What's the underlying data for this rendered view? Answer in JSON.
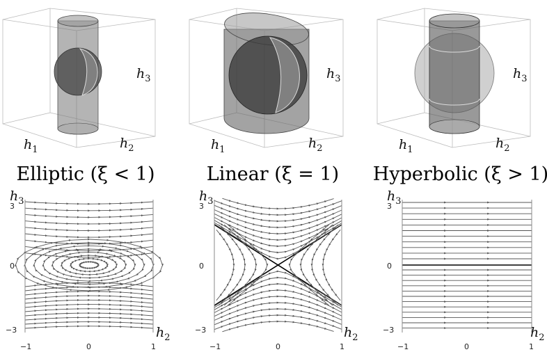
{
  "panels": [
    {
      "id": "elliptic",
      "title": "Elliptic (ξ < 1)",
      "axis_labels": {
        "h1": {
          "base": "h",
          "sub": "1"
        },
        "h2": {
          "base": "h",
          "sub": "2"
        },
        "h3": {
          "base": "h",
          "sub": "3"
        }
      },
      "phase_portrait": {
        "x_ticks": [
          "−1",
          "0",
          "1"
        ],
        "y_ticks": [
          "3",
          "0",
          "−3"
        ],
        "xlabel": {
          "base": "h",
          "sub": "2"
        },
        "ylabel": {
          "base": "h",
          "sub": "3"
        },
        "type": "elliptic"
      }
    },
    {
      "id": "linear",
      "title": "Linear (ξ = 1)",
      "axis_labels": {
        "h1": {
          "base": "h",
          "sub": "1"
        },
        "h2": {
          "base": "h",
          "sub": "2"
        },
        "h3": {
          "base": "h",
          "sub": "3"
        }
      },
      "phase_portrait": {
        "x_ticks": [
          "−1",
          "0",
          "1"
        ],
        "y_ticks": [
          "3",
          "0",
          "−3"
        ],
        "xlabel": {
          "base": "h",
          "sub": "2"
        },
        "ylabel": {
          "base": "h",
          "sub": "3"
        },
        "type": "saddle"
      }
    },
    {
      "id": "hyperbolic",
      "title": "Hyperbolic (ξ > 1)",
      "axis_labels": {
        "h1": {
          "base": "h",
          "sub": "1"
        },
        "h2": {
          "base": "h",
          "sub": "2"
        },
        "h3": {
          "base": "h",
          "sub": "3"
        }
      },
      "phase_portrait": {
        "x_ticks": [
          "−1",
          "0",
          "1"
        ],
        "y_ticks": [
          "3",
          "0",
          "−3"
        ],
        "xlabel": {
          "base": "h",
          "sub": "2"
        },
        "ylabel": {
          "base": "h",
          "sub": "3"
        },
        "type": "parallel"
      }
    }
  ],
  "colors": {
    "line": "#000000",
    "flow": "#555555",
    "surface": "#6e6e6e",
    "box": "#bbbbbb"
  }
}
